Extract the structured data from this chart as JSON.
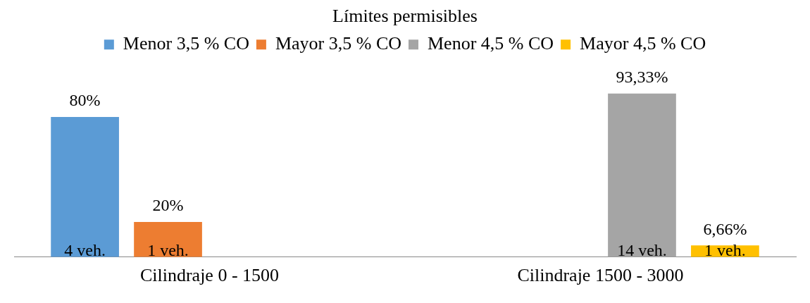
{
  "chart_data": {
    "type": "bar",
    "title": "Límites permisibles",
    "categories": [
      "Cilindraje 0 - 1500",
      "Cilindraje 1500 - 3000"
    ],
    "series": [
      {
        "name": "Menor 3,5 % CO",
        "color": "#5b9bd5",
        "values": [
          80,
          null
        ],
        "value_labels": [
          "80%",
          null
        ]
      },
      {
        "name": "Mayor 3,5 % CO",
        "color": "#ed7d31",
        "values": [
          20,
          null
        ],
        "value_labels": [
          "20%",
          null
        ]
      },
      {
        "name": "Menor 4,5 % CO",
        "color": "#a5a5a5",
        "values": [
          null,
          93.33
        ],
        "value_labels": [
          null,
          "93,33%"
        ]
      },
      {
        "name": "Mayor 4,5 % CO",
        "color": "#ffc000",
        "values": [
          null,
          6.66
        ],
        "value_labels": [
          null,
          "6,66%"
        ]
      }
    ],
    "annotations": [
      "4 veh.",
      "1 veh.",
      "14 veh.",
      "1 veh."
    ],
    "legend": "top",
    "grid": false
  }
}
